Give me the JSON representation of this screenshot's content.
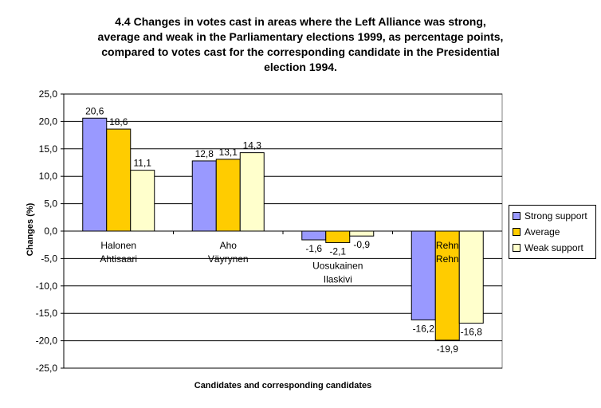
{
  "chart_data": {
    "type": "bar",
    "title": "4.4 Changes in votes cast in areas where the Left Alliance was strong,\naverage and weak in the Parliamentary elections 1999, as percentage points,\ncompared to votes cast for the corresponding candidate in the Presidential\nelection 1994.",
    "xlabel": "Candidates and corresponding candidates",
    "ylabel": "Changes (%)",
    "ylim": [
      -25,
      25
    ],
    "yticks": [
      "25,0",
      "20,0",
      "15,0",
      "10,0",
      "5,0",
      "0,0",
      "-5,0",
      "-10,0",
      "-15,0",
      "-20,0",
      "-25,0"
    ],
    "categories": [
      [
        "Halonen",
        "Ahtisaari"
      ],
      [
        "Aho",
        "Väyrynen"
      ],
      [
        "Uosukainen",
        "Ilaskivi"
      ],
      [
        "Rehn",
        "Rehn"
      ]
    ],
    "series": [
      {
        "name": "Strong support",
        "color": "#9999ff",
        "values": [
          20.6,
          12.8,
          -1.6,
          -16.2
        ],
        "labels": [
          "20,6",
          "12,8",
          "-1,6",
          "-16,2"
        ]
      },
      {
        "name": "Average",
        "color": "#ffcc00",
        "values": [
          18.6,
          13.1,
          -2.1,
          -19.9
        ],
        "labels": [
          "18,6",
          "13,1",
          "-2,1",
          "-19,9"
        ]
      },
      {
        "name": "Weak support",
        "color": "#ffffcc",
        "values": [
          11.1,
          14.3,
          -0.9,
          -16.8
        ],
        "labels": [
          "11,1",
          "14,3",
          "-0,9",
          "-16,8"
        ]
      }
    ],
    "grid": true,
    "legend": "right"
  }
}
